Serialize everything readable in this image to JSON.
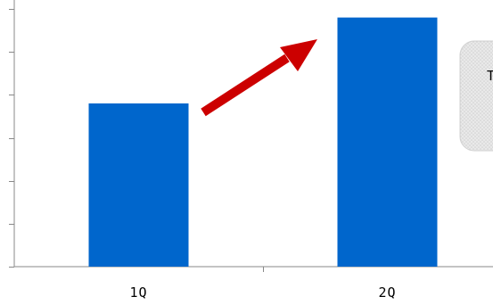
{
  "chart_data": {
    "type": "bar",
    "categories": [
      "1Q",
      "2Q"
    ],
    "values": [
      3.8,
      5.8
    ],
    "ylim": [
      0,
      6
    ],
    "title": "",
    "xlabel": "",
    "ylabel": "",
    "grid": false,
    "bar_color": "#0066cc",
    "arrow_color": "#cc0000"
  },
  "callout": {
    "text": "T"
  }
}
